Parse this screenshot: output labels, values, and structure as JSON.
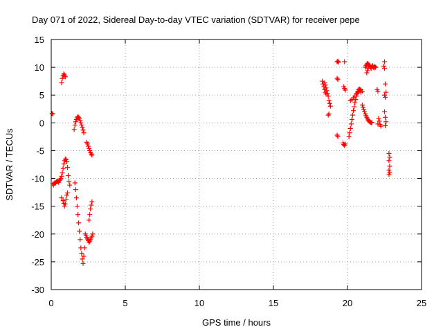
{
  "chart_data": {
    "type": "scatter",
    "title": "Day 071 of 2022, Sidereal Day-to-day VTEC variation (SDTVAR) for receiver pepe",
    "xlabel": "GPS time / hours",
    "ylabel": "SDTVAR / TECUs",
    "xlim": [
      0,
      25
    ],
    "ylim": [
      -30,
      15
    ],
    "xticks": [
      0,
      5,
      10,
      15,
      20,
      25
    ],
    "yticks": [
      -30,
      -25,
      -20,
      -15,
      -10,
      -5,
      0,
      5,
      10,
      15
    ],
    "grid": true,
    "marker": "+",
    "color": "#ff0000",
    "series": [
      {
        "name": "SDTVAR",
        "points": [
          [
            0.05,
            1.7
          ],
          [
            0.1,
            1.6
          ],
          [
            0.1,
            -11.0
          ],
          [
            0.15,
            -11.2
          ],
          [
            0.2,
            -10.9
          ],
          [
            0.25,
            -10.7
          ],
          [
            0.3,
            -10.8
          ],
          [
            0.35,
            -10.6
          ],
          [
            0.4,
            -10.5
          ],
          [
            0.45,
            -10.6
          ],
          [
            0.5,
            -10.7
          ],
          [
            0.55,
            -10.4
          ],
          [
            0.6,
            -10.2
          ],
          [
            0.65,
            -10.0
          ],
          [
            0.7,
            -9.6
          ],
          [
            0.75,
            -9.0
          ],
          [
            0.8,
            -8.2
          ],
          [
            0.85,
            -7.4
          ],
          [
            0.9,
            -6.8
          ],
          [
            0.95,
            -6.5
          ],
          [
            1.0,
            -6.6
          ],
          [
            1.05,
            -7.0
          ],
          [
            1.1,
            -8.0
          ],
          [
            1.15,
            -9.5
          ],
          [
            1.2,
            -10.5
          ],
          [
            1.25,
            -11.2
          ],
          [
            0.7,
            -13.5
          ],
          [
            0.8,
            -14.0
          ],
          [
            0.85,
            -14.5
          ],
          [
            0.9,
            -15.0
          ],
          [
            0.95,
            -14.6
          ],
          [
            1.0,
            -13.8
          ],
          [
            1.05,
            -13.0
          ],
          [
            1.1,
            -12.6
          ],
          [
            0.7,
            7.2
          ],
          [
            0.75,
            8.0
          ],
          [
            0.8,
            8.5
          ],
          [
            0.85,
            8.8
          ],
          [
            0.9,
            8.6
          ],
          [
            0.95,
            8.3
          ],
          [
            1.55,
            -1.2
          ],
          [
            1.6,
            -0.4
          ],
          [
            1.65,
            0.2
          ],
          [
            1.7,
            0.6
          ],
          [
            1.75,
            0.9
          ],
          [
            1.8,
            1.1
          ],
          [
            1.85,
            1.0
          ],
          [
            1.9,
            0.8
          ],
          [
            1.95,
            0.4
          ],
          [
            2.0,
            0.0
          ],
          [
            2.05,
            -0.4
          ],
          [
            2.1,
            -0.8
          ],
          [
            2.15,
            -1.3
          ],
          [
            2.2,
            -1.8
          ],
          [
            1.6,
            -10.8
          ],
          [
            1.65,
            -12.0
          ],
          [
            1.7,
            -13.5
          ],
          [
            1.75,
            -15.0
          ],
          [
            1.8,
            -16.5
          ],
          [
            1.85,
            -18.0
          ],
          [
            1.9,
            -19.5
          ],
          [
            1.95,
            -21.0
          ],
          [
            2.0,
            -22.5
          ],
          [
            2.05,
            -23.5
          ],
          [
            2.1,
            -24.5
          ],
          [
            2.15,
            -25.3
          ],
          [
            2.2,
            -24.0
          ],
          [
            2.25,
            -22.5
          ],
          [
            2.3,
            -20.0
          ],
          [
            2.35,
            -20.3
          ],
          [
            2.4,
            -20.6
          ],
          [
            2.45,
            -20.9
          ],
          [
            2.5,
            -21.2
          ],
          [
            2.55,
            -21.5
          ],
          [
            2.6,
            -21.3
          ],
          [
            2.65,
            -21.0
          ],
          [
            2.7,
            -20.7
          ],
          [
            2.75,
            -20.4
          ],
          [
            2.8,
            -20.0
          ],
          [
            2.55,
            -17.5
          ],
          [
            2.6,
            -16.5
          ],
          [
            2.65,
            -15.5
          ],
          [
            2.7,
            -14.8
          ],
          [
            2.75,
            -14.2
          ],
          [
            2.4,
            -3.5
          ],
          [
            2.45,
            -3.8
          ],
          [
            2.5,
            -4.2
          ],
          [
            2.55,
            -4.6
          ],
          [
            2.6,
            -5.0
          ],
          [
            2.65,
            -5.3
          ],
          [
            2.7,
            -5.6
          ],
          [
            2.75,
            -5.8
          ],
          [
            18.3,
            7.5
          ],
          [
            18.35,
            7.0
          ],
          [
            18.4,
            6.5
          ],
          [
            18.45,
            6.0
          ],
          [
            18.5,
            5.5
          ],
          [
            18.55,
            5.2
          ],
          [
            18.45,
            7.2
          ],
          [
            18.5,
            6.8
          ],
          [
            18.55,
            6.3
          ],
          [
            18.6,
            5.8
          ],
          [
            18.65,
            5.3
          ],
          [
            18.7,
            4.8
          ],
          [
            18.75,
            4.0
          ],
          [
            18.8,
            3.5
          ],
          [
            18.85,
            3.0
          ],
          [
            18.7,
            1.4
          ],
          [
            18.75,
            1.6
          ],
          [
            19.3,
            11.0
          ],
          [
            19.35,
            11.1
          ],
          [
            19.4,
            10.9
          ],
          [
            19.3,
            8.0
          ],
          [
            19.35,
            7.8
          ],
          [
            19.3,
            -2.2
          ],
          [
            19.35,
            -2.5
          ],
          [
            19.8,
            11.0
          ],
          [
            19.75,
            6.5
          ],
          [
            19.8,
            6.2
          ],
          [
            19.85,
            5.9
          ],
          [
            19.7,
            -3.6
          ],
          [
            19.75,
            -3.9
          ],
          [
            19.8,
            -4.1
          ],
          [
            19.85,
            -3.8
          ],
          [
            20.1,
            -2.5
          ],
          [
            20.15,
            -1.8
          ],
          [
            20.2,
            -1.0
          ],
          [
            20.25,
            -0.2
          ],
          [
            20.3,
            0.6
          ],
          [
            20.35,
            1.4
          ],
          [
            20.4,
            2.2
          ],
          [
            20.45,
            2.9
          ],
          [
            20.5,
            3.6
          ],
          [
            20.55,
            4.2
          ],
          [
            20.6,
            4.8
          ],
          [
            20.65,
            5.3
          ],
          [
            20.7,
            5.7
          ],
          [
            20.75,
            6.0
          ],
          [
            20.8,
            6.1
          ],
          [
            20.85,
            5.9
          ],
          [
            20.9,
            5.5
          ],
          [
            20.2,
            4.0
          ],
          [
            20.3,
            4.2
          ],
          [
            20.4,
            4.5
          ],
          [
            20.5,
            4.8
          ],
          [
            20.6,
            5.2
          ],
          [
            20.7,
            5.5
          ],
          [
            20.8,
            5.8
          ],
          [
            20.9,
            6.0
          ],
          [
            21.0,
            5.7
          ],
          [
            21.0,
            3.2
          ],
          [
            21.05,
            2.8
          ],
          [
            21.1,
            2.4
          ],
          [
            21.15,
            2.0
          ],
          [
            21.2,
            1.6
          ],
          [
            21.25,
            1.3
          ],
          [
            21.3,
            1.0
          ],
          [
            21.35,
            0.7
          ],
          [
            21.4,
            0.5
          ],
          [
            21.45,
            0.3
          ],
          [
            21.5,
            0.2
          ],
          [
            21.55,
            0.1
          ],
          [
            21.6,
            0.0
          ],
          [
            21.65,
            0.1
          ],
          [
            21.2,
            10.0
          ],
          [
            21.25,
            10.3
          ],
          [
            21.3,
            10.5
          ],
          [
            21.35,
            10.7
          ],
          [
            21.4,
            10.6
          ],
          [
            21.45,
            10.4
          ],
          [
            21.5,
            10.2
          ],
          [
            21.55,
            10.0
          ],
          [
            21.6,
            9.8
          ],
          [
            21.65,
            10.1
          ],
          [
            21.7,
            10.3
          ],
          [
            21.75,
            10.0
          ],
          [
            21.8,
            9.9
          ],
          [
            21.85,
            10.2
          ],
          [
            21.9,
            10.0
          ],
          [
            21.3,
            9.0
          ],
          [
            21.35,
            9.4
          ],
          [
            21.4,
            9.8
          ],
          [
            22.0,
            6.0
          ],
          [
            22.05,
            5.7
          ],
          [
            22.1,
            0.8
          ],
          [
            22.15,
            0.3
          ],
          [
            22.2,
            -0.3
          ],
          [
            22.25,
            -0.6
          ],
          [
            22.05,
            -0.2
          ],
          [
            22.5,
            11.0
          ],
          [
            22.45,
            10.2
          ],
          [
            22.5,
            9.8
          ],
          [
            22.55,
            7.0
          ],
          [
            22.6,
            5.5
          ],
          [
            22.5,
            5.0
          ],
          [
            22.55,
            4.6
          ],
          [
            22.5,
            2.0
          ],
          [
            22.55,
            1.0
          ],
          [
            22.6,
            0.2
          ],
          [
            22.55,
            -0.5
          ],
          [
            22.8,
            -5.5
          ],
          [
            22.85,
            -6.2
          ],
          [
            22.8,
            -6.8
          ],
          [
            22.85,
            -7.8
          ],
          [
            22.8,
            -8.5
          ],
          [
            22.85,
            -9.0
          ],
          [
            22.8,
            -9.3
          ]
        ]
      }
    ]
  }
}
